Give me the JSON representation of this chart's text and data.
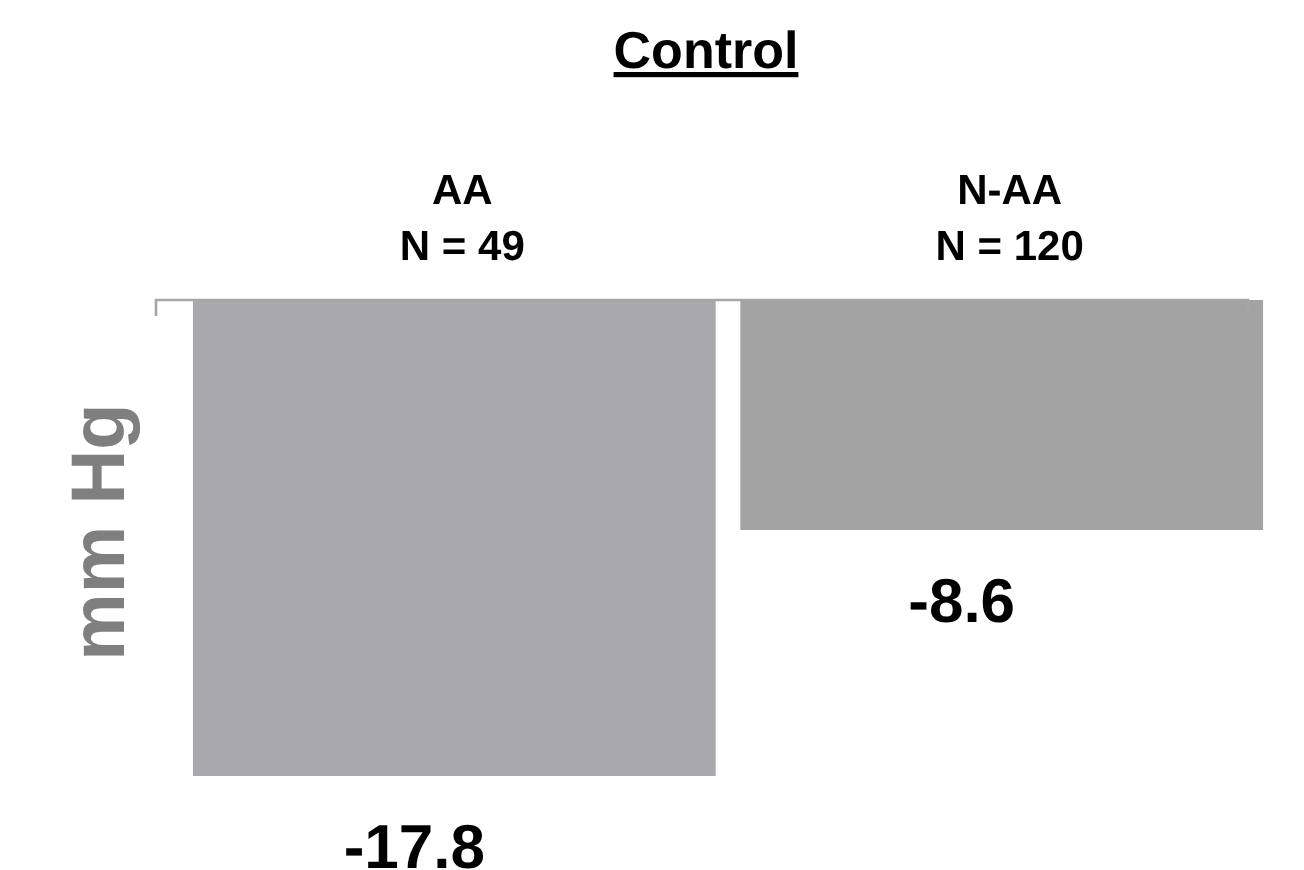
{
  "chart_data": {
    "type": "bar",
    "title": "Control",
    "ylabel": "mm Hg",
    "categories": [
      "AA\nN = 49",
      "N-AA\nN = 120"
    ],
    "values": [
      -17.8,
      -8.6
    ],
    "colors": [
      "#a9a9ad",
      "#a3a3a3"
    ],
    "data_labels": true
  }
}
